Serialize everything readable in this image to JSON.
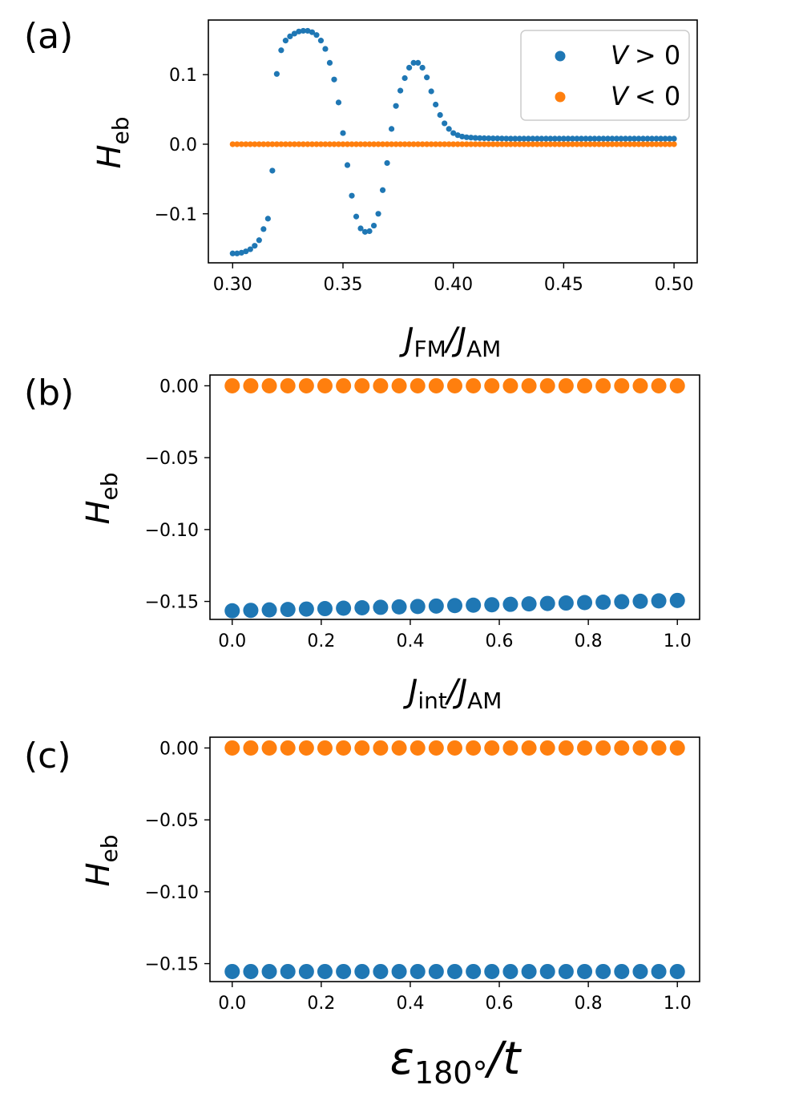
{
  "colors": {
    "series_pos": "#1f77b4",
    "series_neg": "#ff7f0e"
  },
  "legend": [
    {
      "label_var": "V",
      "label_rel": "> 0"
    },
    {
      "label_var": "V",
      "label_rel": "< 0"
    }
  ],
  "chart_data": [
    {
      "panel": "(a)",
      "type": "scatter",
      "ylabel": {
        "main": "H",
        "sub": "eb"
      },
      "xlabel": {
        "a": "J",
        "a_sub": "FM",
        "slash": "/",
        "b": "J",
        "b_sub": "AM"
      },
      "xlim": [
        0.289,
        0.5105
      ],
      "ylim": [
        -0.1705,
        0.1785
      ],
      "xticks": [
        0.3,
        0.35,
        0.4,
        0.45,
        0.5
      ],
      "xtick_labels": [
        "0.30",
        "0.35",
        "0.40",
        "0.45",
        "0.50"
      ],
      "yticks": [
        -0.1,
        0.0,
        0.1
      ],
      "ytick_labels": [
        "−0.1",
        "0.0",
        "0.1"
      ],
      "legend_position": "top-right",
      "series": [
        {
          "name": "V > 0",
          "color": "#1f77b4",
          "x": [
            0.3,
            0.302,
            0.304,
            0.306,
            0.308,
            0.31,
            0.312,
            0.314,
            0.316,
            0.318,
            0.32,
            0.322,
            0.324,
            0.326,
            0.328,
            0.33,
            0.332,
            0.334,
            0.336,
            0.338,
            0.34,
            0.342,
            0.344,
            0.346,
            0.348,
            0.35,
            0.352,
            0.354,
            0.356,
            0.358,
            0.36,
            0.362,
            0.364,
            0.366,
            0.368,
            0.37,
            0.372,
            0.374,
            0.376,
            0.378,
            0.38,
            0.382,
            0.384,
            0.386,
            0.388,
            0.39,
            0.392,
            0.394,
            0.396,
            0.398,
            0.4,
            0.402,
            0.404,
            0.406,
            0.408,
            0.41,
            0.412,
            0.414,
            0.416,
            0.418,
            0.42,
            0.422,
            0.424,
            0.426,
            0.428,
            0.43,
            0.432,
            0.434,
            0.436,
            0.438,
            0.44,
            0.442,
            0.444,
            0.446,
            0.448,
            0.45,
            0.452,
            0.454,
            0.456,
            0.458,
            0.46,
            0.462,
            0.464,
            0.466,
            0.468,
            0.47,
            0.472,
            0.474,
            0.476,
            0.478,
            0.48,
            0.482,
            0.484,
            0.486,
            0.488,
            0.49,
            0.492,
            0.494,
            0.496,
            0.498,
            0.5
          ],
          "y": [
            -0.157,
            -0.157,
            -0.156,
            -0.154,
            -0.151,
            -0.146,
            -0.138,
            -0.122,
            -0.107,
            -0.038,
            0.101,
            0.135,
            0.149,
            0.155,
            0.159,
            0.162,
            0.163,
            0.163,
            0.161,
            0.157,
            0.149,
            0.137,
            0.117,
            0.093,
            0.06,
            0.016,
            -0.03,
            -0.074,
            -0.104,
            -0.121,
            -0.126,
            -0.125,
            -0.117,
            -0.1,
            -0.066,
            -0.027,
            0.022,
            0.055,
            0.077,
            0.095,
            0.11,
            0.117,
            0.117,
            0.11,
            0.096,
            0.076,
            0.057,
            0.042,
            0.03,
            0.022,
            0.016,
            0.013,
            0.011,
            0.01,
            0.0095,
            0.009,
            0.0088,
            0.0086,
            0.0085,
            0.0084,
            0.0083,
            0.0082,
            0.0081,
            0.008,
            0.008,
            0.008,
            0.008,
            0.008,
            0.008,
            0.008,
            0.008,
            0.008,
            0.008,
            0.008,
            0.008,
            0.008,
            0.008,
            0.008,
            0.008,
            0.008,
            0.008,
            0.008,
            0.008,
            0.008,
            0.008,
            0.008,
            0.008,
            0.008,
            0.008,
            0.008,
            0.008,
            0.008,
            0.008,
            0.008,
            0.008,
            0.008,
            0.008,
            0.008,
            0.008,
            0.008,
            0.008
          ]
        },
        {
          "name": "V < 0",
          "color": "#ff7f0e",
          "x": [
            0.3,
            0.302,
            0.304,
            0.306,
            0.308,
            0.31,
            0.312,
            0.314,
            0.316,
            0.318,
            0.32,
            0.322,
            0.324,
            0.326,
            0.328,
            0.33,
            0.332,
            0.334,
            0.336,
            0.338,
            0.34,
            0.342,
            0.344,
            0.346,
            0.348,
            0.35,
            0.352,
            0.354,
            0.356,
            0.358,
            0.36,
            0.362,
            0.364,
            0.366,
            0.368,
            0.37,
            0.372,
            0.374,
            0.376,
            0.378,
            0.38,
            0.382,
            0.384,
            0.386,
            0.388,
            0.39,
            0.392,
            0.394,
            0.396,
            0.398,
            0.4,
            0.402,
            0.404,
            0.406,
            0.408,
            0.41,
            0.412,
            0.414,
            0.416,
            0.418,
            0.42,
            0.422,
            0.424,
            0.426,
            0.428,
            0.43,
            0.432,
            0.434,
            0.436,
            0.438,
            0.44,
            0.442,
            0.444,
            0.446,
            0.448,
            0.45,
            0.452,
            0.454,
            0.456,
            0.458,
            0.46,
            0.462,
            0.464,
            0.466,
            0.468,
            0.47,
            0.472,
            0.474,
            0.476,
            0.478,
            0.48,
            0.482,
            0.484,
            0.486,
            0.488,
            0.49,
            0.492,
            0.494,
            0.496,
            0.498,
            0.5
          ],
          "y": [
            0,
            0,
            0,
            0,
            0,
            0,
            0,
            0,
            0,
            0,
            0,
            0,
            0,
            0,
            0,
            0,
            0,
            0,
            0,
            0,
            0,
            0,
            0,
            0,
            0,
            0,
            0,
            0,
            0,
            0,
            0,
            0,
            0,
            0,
            0,
            0,
            0,
            0,
            0,
            0,
            0,
            0,
            0,
            0,
            0,
            0,
            0,
            0,
            0,
            0,
            0,
            0,
            0,
            0,
            0,
            0,
            0,
            0,
            0,
            0,
            0,
            0,
            0,
            0,
            0,
            0,
            0,
            0,
            0,
            0,
            0,
            0,
            0,
            0,
            0,
            0,
            0,
            0,
            0,
            0,
            0,
            0,
            0,
            0,
            0,
            0,
            0,
            0,
            0,
            0,
            0,
            0,
            0,
            0,
            0,
            0,
            0,
            0,
            0,
            0,
            0
          ]
        }
      ]
    },
    {
      "panel": "(b)",
      "type": "scatter",
      "ylabel": {
        "main": "H",
        "sub": "eb"
      },
      "xlabel": {
        "a": "J",
        "a_sub": "int",
        "slash": "/",
        "b": "J",
        "b_sub": "AM"
      },
      "xlim": [
        -0.05,
        1.05
      ],
      "ylim": [
        -0.1625,
        0.0075
      ],
      "xticks": [
        0.0,
        0.2,
        0.4,
        0.6,
        0.8,
        1.0
      ],
      "xtick_labels": [
        "0.0",
        "0.2",
        "0.4",
        "0.6",
        "0.8",
        "1.0"
      ],
      "yticks": [
        0.0,
        -0.05,
        -0.1,
        -0.15
      ],
      "ytick_labels": [
        "0.00",
        "−0.05",
        "−0.10",
        "−0.15"
      ],
      "series": [
        {
          "name": "V > 0",
          "color": "#1f77b4",
          "x": [
            0.0,
            0.0417,
            0.0833,
            0.125,
            0.1667,
            0.2083,
            0.25,
            0.2917,
            0.3333,
            0.375,
            0.4167,
            0.4583,
            0.5,
            0.5417,
            0.5833,
            0.625,
            0.6667,
            0.7083,
            0.75,
            0.7917,
            0.8333,
            0.875,
            0.9167,
            0.9583,
            1.0
          ],
          "y": [
            -0.1565,
            -0.1562,
            -0.1559,
            -0.1556,
            -0.1553,
            -0.155,
            -0.1547,
            -0.1544,
            -0.1541,
            -0.1538,
            -0.1535,
            -0.1532,
            -0.1529,
            -0.1526,
            -0.1523,
            -0.152,
            -0.1517,
            -0.1514,
            -0.1511,
            -0.1508,
            -0.1505,
            -0.1502,
            -0.1499,
            -0.1496,
            -0.1493
          ]
        },
        {
          "name": "V < 0",
          "color": "#ff7f0e",
          "x": [
            0.0,
            0.0417,
            0.0833,
            0.125,
            0.1667,
            0.2083,
            0.25,
            0.2917,
            0.3333,
            0.375,
            0.4167,
            0.4583,
            0.5,
            0.5417,
            0.5833,
            0.625,
            0.6667,
            0.7083,
            0.75,
            0.7917,
            0.8333,
            0.875,
            0.9167,
            0.9583,
            1.0
          ],
          "y": [
            0,
            0,
            0,
            0,
            0,
            0,
            0,
            0,
            0,
            0,
            0,
            0,
            0,
            0,
            0,
            0,
            0,
            0,
            0,
            0,
            0,
            0,
            0,
            0,
            0
          ]
        }
      ]
    },
    {
      "panel": "(c)",
      "type": "scatter",
      "ylabel": {
        "main": "H",
        "sub": "eb"
      },
      "xlabel": {
        "a": "ε",
        "a_sub": "180°",
        "slash": "/",
        "b": "t",
        "b_sub": ""
      },
      "xlim": [
        -0.05,
        1.05
      ],
      "ylim": [
        -0.1625,
        0.0075
      ],
      "xticks": [
        0.0,
        0.2,
        0.4,
        0.6,
        0.8,
        1.0
      ],
      "xtick_labels": [
        "0.0",
        "0.2",
        "0.4",
        "0.6",
        "0.8",
        "1.0"
      ],
      "yticks": [
        0.0,
        -0.05,
        -0.1,
        -0.15
      ],
      "ytick_labels": [
        "0.00",
        "−0.05",
        "−0.10",
        "−0.15"
      ],
      "series": [
        {
          "name": "V > 0",
          "color": "#1f77b4",
          "x": [
            0.0,
            0.0417,
            0.0833,
            0.125,
            0.1667,
            0.2083,
            0.25,
            0.2917,
            0.3333,
            0.375,
            0.4167,
            0.4583,
            0.5,
            0.5417,
            0.5833,
            0.625,
            0.6667,
            0.7083,
            0.75,
            0.7917,
            0.8333,
            0.875,
            0.9167,
            0.9583,
            1.0
          ],
          "y": [
            -0.1555,
            -0.1555,
            -0.1555,
            -0.1555,
            -0.1555,
            -0.1555,
            -0.1555,
            -0.1555,
            -0.1555,
            -0.1555,
            -0.1555,
            -0.1555,
            -0.1555,
            -0.1555,
            -0.1555,
            -0.1555,
            -0.1555,
            -0.1555,
            -0.1555,
            -0.1555,
            -0.1555,
            -0.1555,
            -0.1555,
            -0.1555,
            -0.1555
          ]
        },
        {
          "name": "V < 0",
          "color": "#ff7f0e",
          "x": [
            0.0,
            0.0417,
            0.0833,
            0.125,
            0.1667,
            0.2083,
            0.25,
            0.2917,
            0.3333,
            0.375,
            0.4167,
            0.4583,
            0.5,
            0.5417,
            0.5833,
            0.625,
            0.6667,
            0.7083,
            0.75,
            0.7917,
            0.8333,
            0.875,
            0.9167,
            0.9583,
            1.0
          ],
          "y": [
            0,
            0,
            0,
            0,
            0,
            0,
            0,
            0,
            0,
            0,
            0,
            0,
            0,
            0,
            0,
            0,
            0,
            0,
            0,
            0,
            0,
            0,
            0,
            0,
            0
          ]
        }
      ]
    }
  ]
}
